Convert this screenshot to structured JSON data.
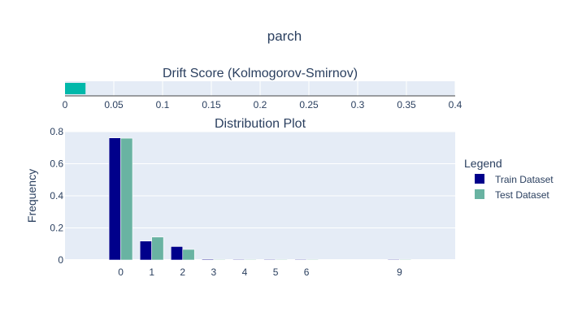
{
  "title": "parch",
  "drift": {
    "title": "Drift Score (Kolmogorov-Smirnov)",
    "score": 0.021,
    "xlim": [
      0,
      0.4
    ],
    "ticks": [
      "0",
      "0.05",
      "0.1",
      "0.15",
      "0.2",
      "0.25",
      "0.3",
      "0.35",
      "0.4"
    ],
    "bar_color": "#01B8AA"
  },
  "chart_data": {
    "type": "bar",
    "title": "Distribution Plot",
    "xlabel": "",
    "ylabel": "Frequency",
    "categories": [
      "0",
      "1",
      "2",
      "3",
      "4",
      "5",
      "6",
      "9"
    ],
    "x_values": [
      0,
      1,
      2,
      3,
      4,
      5,
      6,
      9
    ],
    "xlim": [
      -1.8,
      10.8
    ],
    "ylim": [
      0,
      0.8
    ],
    "yticks": [
      "0",
      "0.2",
      "0.4",
      "0.6",
      "0.8"
    ],
    "grid": true,
    "legend_title": "Legend",
    "legend_position": "right",
    "series": [
      {
        "name": "Train Dataset",
        "color": "#00008B",
        "values": [
          0.761,
          0.118,
          0.084,
          0.005,
          0.004,
          0.004,
          0.0,
          0.002
        ]
      },
      {
        "name": "Test Dataset",
        "color": "#69B3A2",
        "values": [
          0.759,
          0.143,
          0.066,
          0.0,
          0.004,
          0.002,
          0.003,
          0.0
        ]
      }
    ]
  }
}
